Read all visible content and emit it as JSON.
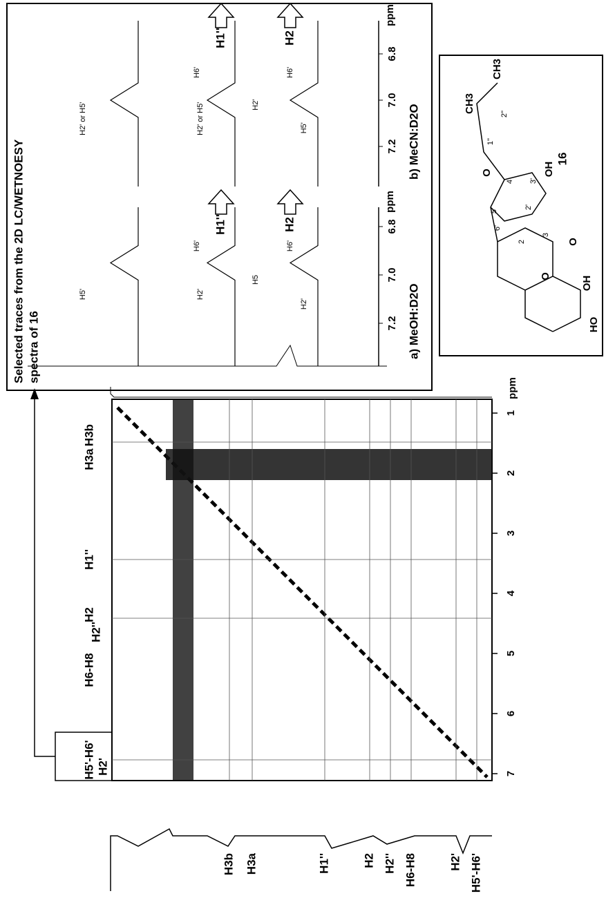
{
  "inset": {
    "title": [
      "Selected traces from the 2D LC/WETNOESY",
      "spectra of 16"
    ],
    "panels": [
      {
        "caption": "a) MeOH:D2O",
        "unit": "ppm",
        "ticks": [
          7.2,
          {
            "value": 7,
            "label": "7.0"
          },
          6.8
        ],
        "traces": [
          "H1''",
          "H2"
        ],
        "peak_labels": [
          "H5'",
          "H2'",
          "H6'",
          "H5",
          "H2'",
          "H6'"
        ]
      },
      {
        "caption": "b) MeCN:D2O",
        "unit": "ppm",
        "ticks": [
          7.2,
          {
            "value": 7,
            "label": "7.0"
          },
          6.8
        ],
        "traces": [
          "H1''",
          "H2"
        ],
        "peak_labels": [
          "H2' or H5'",
          "H2' or H5'",
          "H6'",
          "H2'",
          "H5'",
          "H6'"
        ]
      }
    ]
  },
  "spectrum": {
    "unit": "ppm",
    "ticks": [
      1,
      2,
      3,
      4,
      5,
      6,
      7
    ],
    "top_labels": [
      "H5'-H6'",
      "H2'",
      "H6-H8",
      "H2''",
      "H2",
      "H1''",
      "H3a",
      "H3b"
    ],
    "side_labels": [
      "H3b",
      "H3a",
      "H1''",
      "H2",
      "H2''",
      "H6-H8",
      "H2'",
      "H5'-H6'"
    ]
  },
  "structure": {
    "compound": "16",
    "atoms": [
      "HO",
      "OH",
      "O",
      "O",
      "O",
      "OH",
      "CH3",
      "CH3",
      "2",
      "3",
      "4'",
      "3'",
      "2'",
      "5'",
      "6'",
      "1''",
      "2''"
    ]
  }
}
